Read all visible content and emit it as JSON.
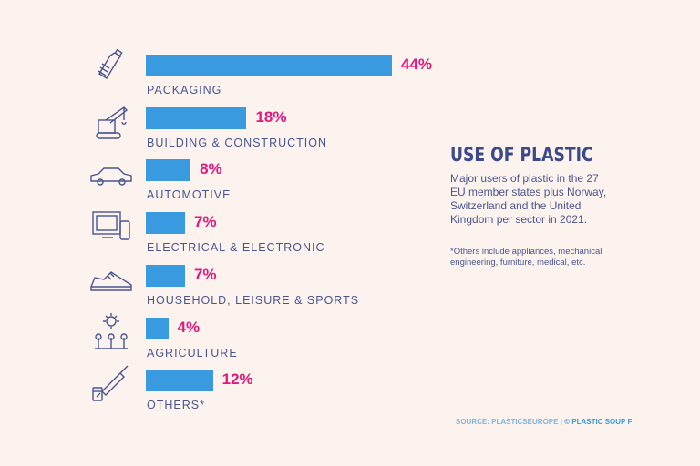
{
  "chart_data": {
    "type": "bar",
    "orientation": "horizontal",
    "title": "USE OF PLASTIC",
    "subtitle": "Major users of plastic in the 27 EU member states plus Norway, Switzerland and the United Kingdom per sector in 2021.",
    "note": "*Others include appliances, mechanical engineering, furniture, medical, etc.",
    "source_label": "SOURCE: PLASTICSEUROPE |",
    "source_credit": "© PLASTIC SOUP F",
    "categories": [
      "PACKAGING",
      "BUILDING & CONSTRUCTION",
      "AUTOMOTIVE",
      "ELECTRICAL & ELECTRONIC",
      "HOUSEHOLD, LEISURE & SPORTS",
      "AGRICULTURE",
      "OTHERS*"
    ],
    "values": [
      44,
      18,
      8,
      7,
      7,
      4,
      12
    ],
    "value_labels": [
      "44%",
      "18%",
      "8%",
      "7%",
      "7%",
      "4%",
      "12%"
    ],
    "icons": [
      "bottle-icon",
      "crane-icon",
      "car-icon",
      "computer-phone-icon",
      "sneaker-icon",
      "sun-plants-icon",
      "syringe-vial-icon"
    ],
    "colors": {
      "bar": "#3a9ae0",
      "value": "#e5177b",
      "text": "#4a5590",
      "background": "#fcf3ee"
    }
  }
}
